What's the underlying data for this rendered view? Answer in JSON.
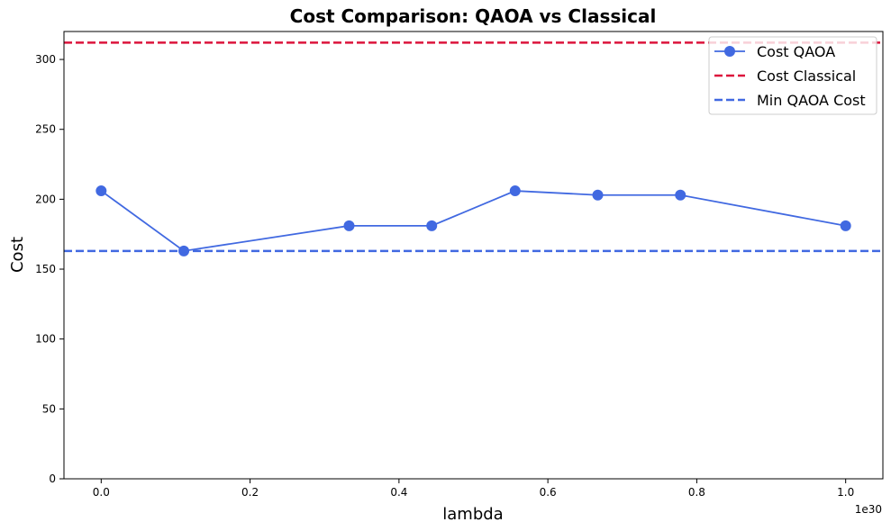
{
  "chart_data": {
    "type": "line",
    "title": "Cost Comparison: QAOA vs Classical",
    "xlabel": "lambda",
    "ylabel": "Cost",
    "x_offset_label": "1e30",
    "xlim": [
      -0.05,
      1.05
    ],
    "ylim": [
      0,
      320
    ],
    "x_ticks": [
      0.0,
      0.2,
      0.4,
      0.6,
      0.8,
      1.0
    ],
    "x_tick_labels": [
      "0.0",
      "0.2",
      "0.4",
      "0.6",
      "0.8",
      "1.0"
    ],
    "y_ticks": [
      0,
      50,
      100,
      150,
      200,
      250,
      300
    ],
    "y_tick_labels": [
      "0",
      "50",
      "100",
      "150",
      "200",
      "250",
      "300"
    ],
    "grid": false,
    "legend_position": "top-right",
    "series": [
      {
        "name": "Cost QAOA",
        "kind": "line-markers",
        "color": "#4169e1",
        "x": [
          0.0,
          0.111,
          0.333,
          0.444,
          0.556,
          0.667,
          0.778,
          1.0
        ],
        "y": [
          206,
          163,
          181,
          181,
          206,
          203,
          203,
          181
        ]
      },
      {
        "name": "Cost Classical",
        "kind": "hline",
        "color": "#dc143c",
        "y": 312
      },
      {
        "name": "Min QAOA Cost",
        "kind": "hline",
        "color": "#4169e1",
        "y": 163
      }
    ]
  }
}
